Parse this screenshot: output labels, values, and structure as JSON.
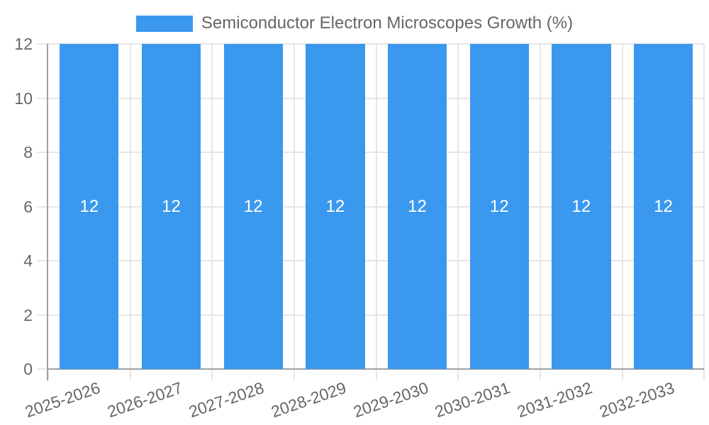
{
  "legend": {
    "label": "Semiconductor Electron Microscopes Growth (%)"
  },
  "chart_data": {
    "type": "bar",
    "title": "Semiconductor Electron Microscopes Growth (%)",
    "categories": [
      "2025-2026",
      "2026-2027",
      "2027-2028",
      "2028-2029",
      "2029-2030",
      "2030-2031",
      "2031-2032",
      "2032-2033"
    ],
    "values": [
      12,
      12,
      12,
      12,
      12,
      12,
      12,
      12
    ],
    "bar_labels": [
      "12",
      "12",
      "12",
      "12",
      "12",
      "12",
      "12",
      "12"
    ],
    "xlabel": "",
    "ylabel": "",
    "ylim": [
      0,
      12
    ],
    "yticks": [
      0,
      2,
      4,
      6,
      8,
      10,
      12
    ],
    "grid": true,
    "legend_position": "top"
  },
  "colors": {
    "bar": "#3a99ee",
    "grid": "#e6e6e6",
    "axis": "#a0a0a0",
    "text": "#666666",
    "bar_label": "#ffffff",
    "background": "#ffffff"
  }
}
